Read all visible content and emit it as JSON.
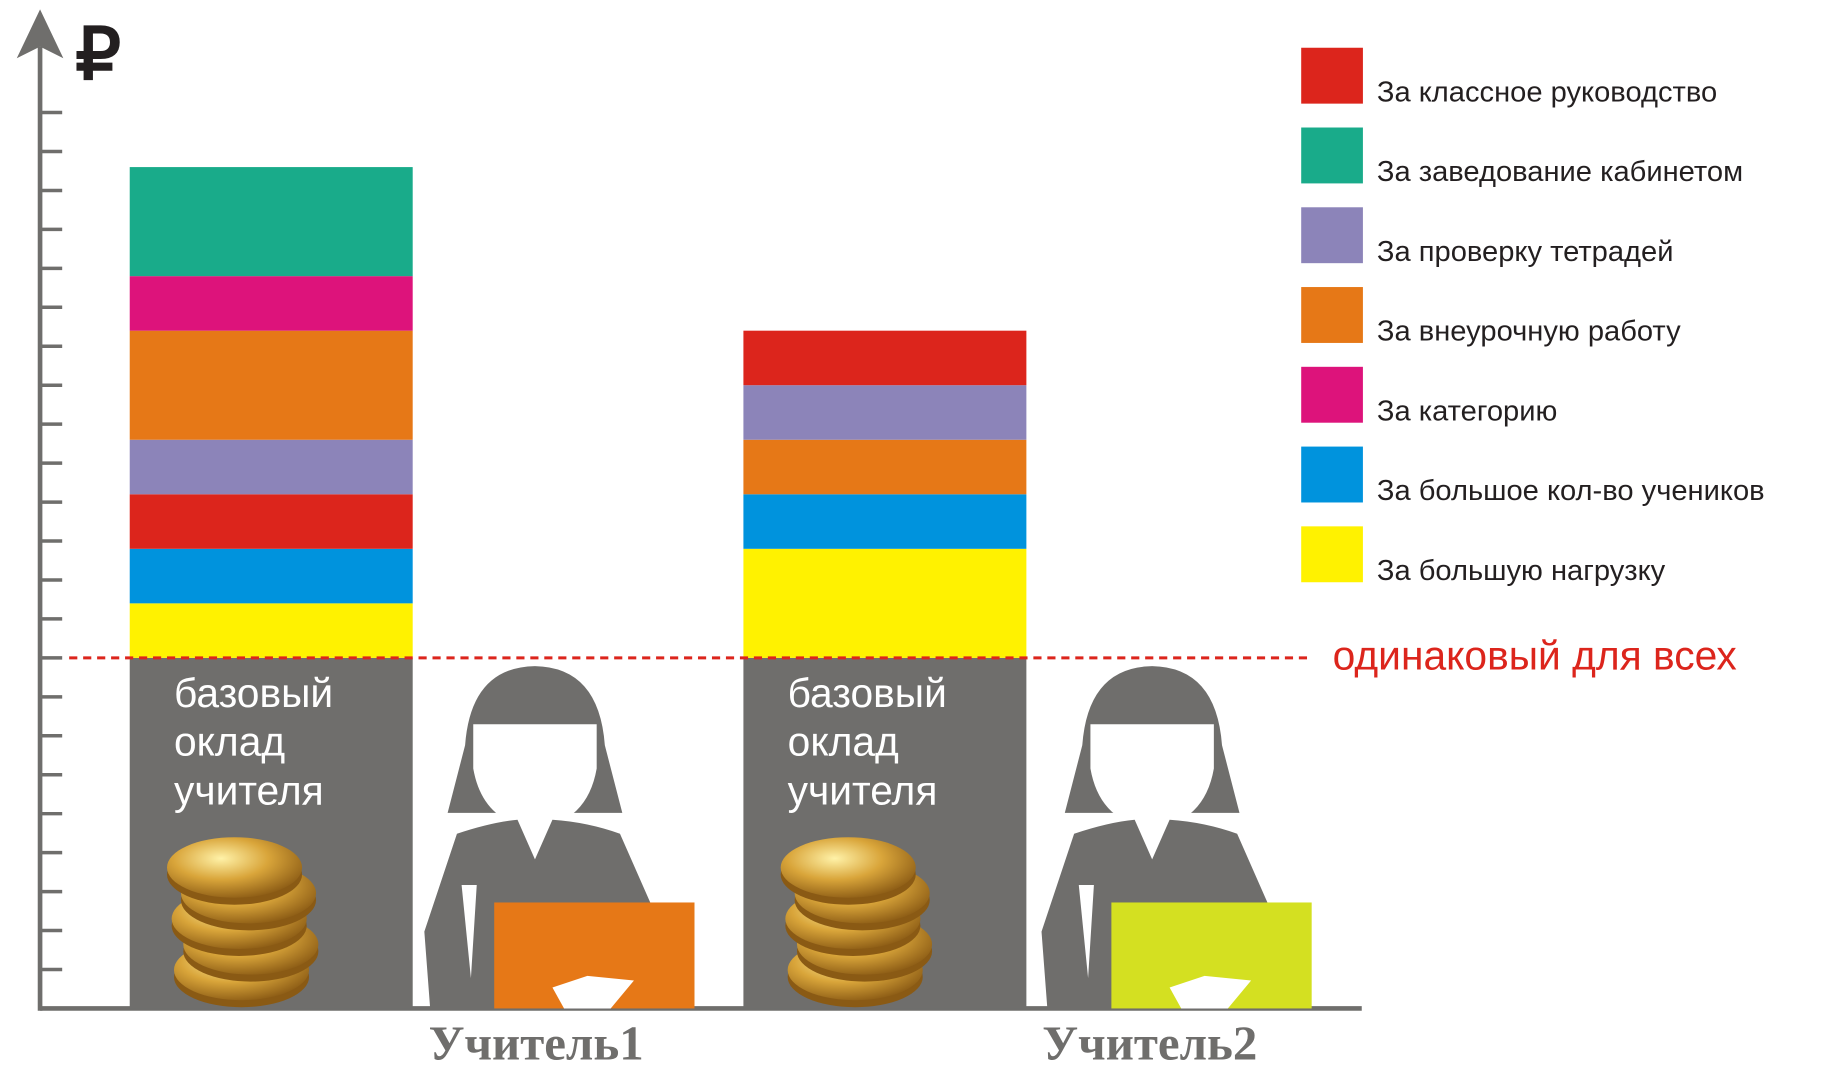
{
  "chart_data": {
    "type": "stacked-bar",
    "y_label": "₽",
    "categories": [
      "Учитель1",
      "Учитель2"
    ],
    "bars": [
      {
        "segments": [
          {
            "label": "базовый оклад учителя",
            "color": "#6f6e6c",
            "value": 9
          },
          {
            "color": "#fff200",
            "value": 1.4
          },
          {
            "color": "#0093dd",
            "value": 1.4
          },
          {
            "color": "#dc251c",
            "value": 1.4
          },
          {
            "color": "#8c84b9",
            "value": 1.4
          },
          {
            "color": "#e67817",
            "value": 2.8
          },
          {
            "color": "#dd137b",
            "value": 1.4
          },
          {
            "color": "#19ab8a",
            "value": 2.8
          }
        ]
      },
      {
        "segments": [
          {
            "label": "базовый оклад учителя",
            "color": "#6f6e6c",
            "value": 9
          },
          {
            "color": "#fff200",
            "value": 2.8
          },
          {
            "color": "#0093dd",
            "value": 1.4
          },
          {
            "color": "#e67817",
            "value": 1.4
          },
          {
            "color": "#8c84b9",
            "value": 1.4
          },
          {
            "color": "#dc251c",
            "value": 1.4
          }
        ]
      }
    ],
    "legend": [
      {
        "name": "За классное руководство",
        "color": "#dc251c"
      },
      {
        "name": "За заведование кабинетом",
        "color": "#19ab8a"
      },
      {
        "name": "За проверку тетрадей",
        "color": "#8c84b9"
      },
      {
        "name": "За внеурочную работу",
        "color": "#e67817"
      },
      {
        "name": "За категорию",
        "color": "#dd137b"
      },
      {
        "name": "За большое кол-во учеников",
        "color": "#0093dd"
      },
      {
        "name": "За большую нагрузку",
        "color": "#fff200"
      }
    ],
    "annotation": "одинаковый для всех",
    "ylim": [
      0,
      25.5
    ],
    "yticks": [
      1,
      2,
      3,
      4,
      5,
      6,
      7,
      8,
      9,
      10,
      11,
      12,
      13,
      14,
      15,
      16,
      17,
      18,
      19,
      20,
      21,
      22,
      23
    ]
  }
}
